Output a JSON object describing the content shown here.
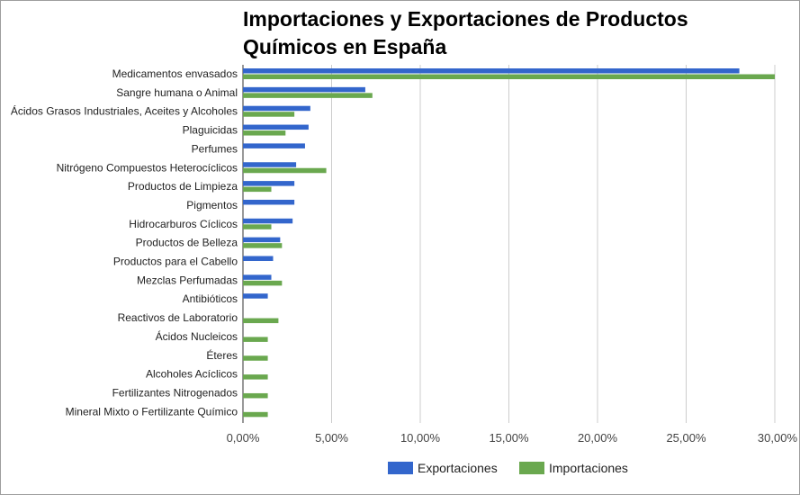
{
  "chart_data": {
    "type": "bar",
    "orientation": "horizontal",
    "title": "Importaciones y Exportaciones de Productos Químicos en España",
    "xlabel": "",
    "ylabel": "",
    "xlim": [
      0,
      30
    ],
    "ticks": [
      0,
      5,
      10,
      15,
      20,
      25,
      30
    ],
    "tick_labels": [
      "0,00%",
      "5,00%",
      "10,00%",
      "15,00%",
      "20,00%",
      "25,00%",
      "30,00%"
    ],
    "grid": true,
    "legend_position": "bottom",
    "categories": [
      "Medicamentos envasados",
      "Sangre humana o Animal",
      "Ácidos Grasos Industriales, Aceites y Alcoholes",
      "Plaguicidas",
      "Perfumes",
      "Nitrógeno Compuestos Heterocíclicos",
      "Productos de Limpieza",
      "Pigmentos",
      "Hidrocarburos Cíclicos",
      "Productos de Belleza",
      "Productos para el Cabello",
      "Mezclas Perfumadas",
      "Antibióticos",
      "Reactivos de Laboratorio",
      "Ácidos Nucleicos",
      "Éteres",
      "Alcoholes Acíclicos",
      "Fertilizantes Nitrogenados",
      "Mineral Mixto o Fertilizante Químico"
    ],
    "series": [
      {
        "name": "Exportaciones",
        "color": "#3366cc",
        "values": [
          28.0,
          6.9,
          3.8,
          3.7,
          3.5,
          3.0,
          2.9,
          2.9,
          2.8,
          2.1,
          1.7,
          1.6,
          1.4,
          0,
          0,
          0,
          0,
          0,
          0
        ]
      },
      {
        "name": "Importaciones",
        "color": "#6aa84f",
        "values": [
          30.0,
          7.3,
          2.9,
          2.4,
          0,
          4.7,
          1.6,
          0,
          1.6,
          2.2,
          0,
          2.2,
          0,
          2.0,
          1.4,
          1.4,
          1.4,
          1.4,
          1.4
        ]
      }
    ]
  }
}
